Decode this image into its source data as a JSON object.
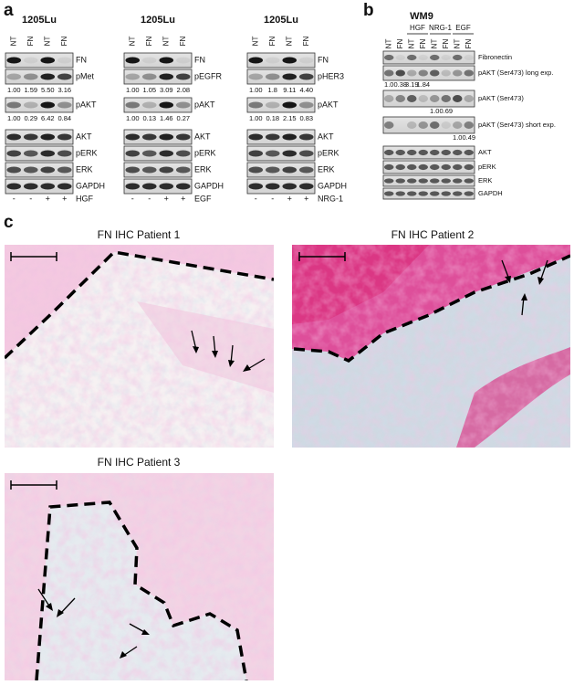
{
  "panel_a": {
    "label": "a",
    "blots": [
      {
        "title": "1205Lu",
        "lanes": [
          "NT",
          "FN",
          "NT",
          "FN"
        ],
        "rows": [
          {
            "name": "FN"
          },
          {
            "name": "pMet",
            "quant": [
              "1.00",
              "1.59",
              "5.50",
              "3.16"
            ]
          },
          {
            "name": "pAKT",
            "quant": [
              "1.00",
              "0.29",
              "6.42",
              "0.84"
            ]
          },
          {
            "name": "AKT"
          },
          {
            "name": "pERK"
          },
          {
            "name": "ERK"
          },
          {
            "name": "GAPDH"
          }
        ],
        "treatment": {
          "signs": [
            "-",
            "-",
            "+",
            "+"
          ],
          "name": "HGF"
        }
      },
      {
        "title": "1205Lu",
        "lanes": [
          "NT",
          "FN",
          "NT",
          "FN"
        ],
        "rows": [
          {
            "name": "FN"
          },
          {
            "name": "pEGFR",
            "quant": [
              "1.00",
              "1.05",
              "3.09",
              "2.08"
            ]
          },
          {
            "name": "pAKT",
            "quant": [
              "1.00",
              "0.13",
              "1.46",
              "0.27"
            ]
          },
          {
            "name": "AKT"
          },
          {
            "name": "pERK"
          },
          {
            "name": "ERK"
          },
          {
            "name": "GAPDH"
          }
        ],
        "treatment": {
          "signs": [
            "-",
            "-",
            "+",
            "+"
          ],
          "name": "EGF"
        }
      },
      {
        "title": "1205Lu",
        "lanes": [
          "NT",
          "FN",
          "NT",
          "FN"
        ],
        "rows": [
          {
            "name": "FN"
          },
          {
            "name": "pHER3",
            "quant": [
              "1.00",
              "1.8",
              "9.11",
              "4.40"
            ]
          },
          {
            "name": "pAKT",
            "quant": [
              "1.00",
              "0.18",
              "2.15",
              "0.83"
            ]
          },
          {
            "name": "AKT"
          },
          {
            "name": "pERK"
          },
          {
            "name": "ERK"
          },
          {
            "name": "GAPDH"
          }
        ],
        "treatment": {
          "signs": [
            "-",
            "-",
            "+",
            "+"
          ],
          "name": "NRG-1"
        }
      }
    ]
  },
  "panel_b": {
    "label": "b",
    "title": "WM9",
    "lanes": [
      "NT",
      "FN",
      "NT",
      "FN",
      "NT",
      "FN",
      "NT",
      "FN"
    ],
    "groups": [
      "HGF",
      "NRG-1",
      "EGF"
    ],
    "rows": [
      {
        "name": "Fibronectin"
      },
      {
        "name": "pAKT (Ser473) long exp.",
        "quant": [
          "1.0",
          "0.38",
          "3.19",
          "1.84"
        ]
      },
      {
        "name": "pAKT (Ser473)",
        "quant": [
          "1.0",
          "0.69"
        ]
      },
      {
        "name": "pAKT (Ser473) short exp.",
        "quant": [
          "1.0",
          "0.49"
        ]
      },
      {
        "name": "AKT"
      },
      {
        "name": "pERK"
      },
      {
        "name": "ERK"
      },
      {
        "name": "GAPDH"
      }
    ]
  },
  "panel_c": {
    "label": "c",
    "images": [
      "FN IHC Patient 1",
      "FN IHC Patient 2",
      "FN IHC Patient 3"
    ]
  }
}
